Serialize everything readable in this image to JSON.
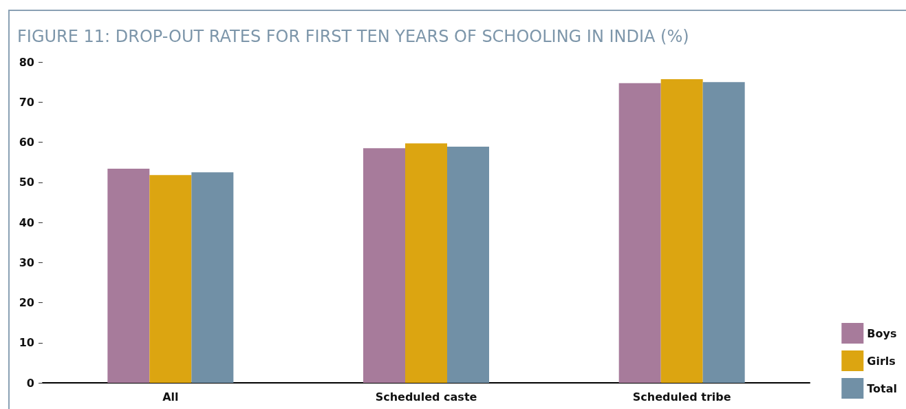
{
  "chart_data": {
    "type": "bar",
    "title": "FIGURE 11: DROP-OUT RATES FOR FIRST TEN YEARS OF SCHOOLING IN INDIA (%)",
    "categories": [
      "All",
      "Scheduled caste",
      "Scheduled tribe"
    ],
    "series": [
      {
        "name": "Boys",
        "color": "#a77b9b",
        "values": [
          53.4,
          58.5,
          74.7
        ]
      },
      {
        "name": "Girls",
        "color": "#dca511",
        "values": [
          51.8,
          59.7,
          75.7
        ]
      },
      {
        "name": "Total",
        "color": "#7190a6",
        "values": [
          52.5,
          58.9,
          75.0
        ]
      }
    ],
    "ylim": [
      0,
      80
    ],
    "yticks": [
      0,
      10,
      20,
      30,
      40,
      50,
      60,
      70,
      80
    ],
    "grid": false,
    "legend": "bottom right"
  }
}
